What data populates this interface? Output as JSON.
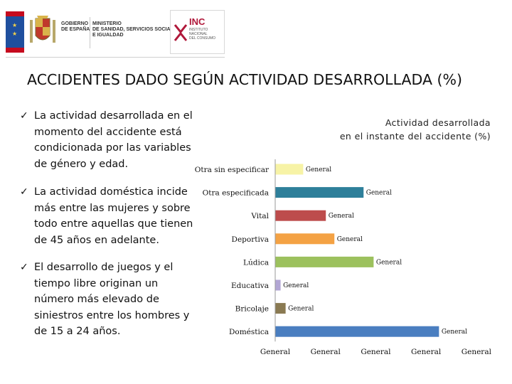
{
  "header": {
    "gov_lines": [
      "GOBIERNO",
      "DE ESPAÑA"
    ],
    "ministry_lines": [
      "MINISTERIO",
      "DE SANIDAD, SERVICIOS SOCIALES",
      "E IGUALDAD"
    ],
    "inc_name": "INC",
    "inc_lines": [
      "INSTITUTO",
      "NACIONAL",
      "DEL CONSUMO"
    ]
  },
  "slide_title": "ACCIDENTES DADO SEGÚN ACTIVIDAD DESARROLLADA (%)",
  "bullets": [
    "La actividad desarrollada en el momento del accidente está condicionada por las variables de género y edad.",
    "La actividad doméstica incide más entre las mujeres y sobre todo entre aquellas que tienen de 45 años en adelante.",
    "El desarrollo de juegos y el tiempo libre originan un número más elevado de siniestros entre los hombres y de 15 a 24 años."
  ],
  "check_glyph": "✓",
  "chart_data": {
    "type": "bar",
    "orientation": "horizontal",
    "title_lines": [
      "Actividad desarrollada",
      "en el instante del accidente (%)"
    ],
    "categories": [
      "Otra sin especificar",
      "Otra especificada",
      "Vital",
      "Deportiva",
      "Lúdica",
      "Educativa",
      "Bricolaje",
      "Doméstica"
    ],
    "values": [
      5.5,
      17.5,
      10.0,
      11.7,
      19.5,
      1.0,
      2.0,
      32.5
    ],
    "value_labels": [
      "General",
      "General",
      "General",
      "General",
      "General",
      "General",
      "General",
      "General"
    ],
    "colors": [
      "#f7f3a6",
      "#2e7f9a",
      "#bd4c4c",
      "#f4a244",
      "#9cc15d",
      "#b2a6d4",
      "#8a7a52",
      "#4a7ec0"
    ],
    "xlim": [
      0,
      42
    ],
    "x_ticks": [
      0,
      10,
      20,
      30,
      40
    ],
    "x_tick_labels": [
      "General",
      "General",
      "General",
      "General",
      "General"
    ]
  }
}
